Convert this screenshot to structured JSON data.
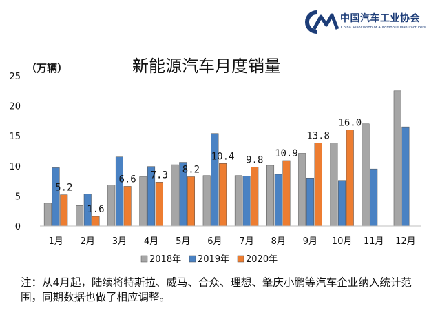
{
  "logo": {
    "name": "中国汽车工业协会",
    "subtitle": "China Association of Automobile Manufacturers",
    "mark_text": "CM"
  },
  "chart_data": {
    "type": "bar",
    "title": "新能源汽车月度销量",
    "unit_label": "（万辆）",
    "categories": [
      "1月",
      "2月",
      "3月",
      "4月",
      "5月",
      "6月",
      "7月",
      "8月",
      "9月",
      "10月",
      "11月",
      "12月"
    ],
    "series": [
      {
        "name": "2018年",
        "color": "#a6a6a6",
        "values": [
          3.8,
          3.4,
          6.8,
          8.2,
          10.2,
          8.4,
          8.4,
          10.1,
          12.1,
          13.8,
          17.0,
          22.5
        ]
      },
      {
        "name": "2019年",
        "color": "#4a82c3",
        "values": [
          9.7,
          5.3,
          11.5,
          9.9,
          10.6,
          15.4,
          8.3,
          8.6,
          8.0,
          7.6,
          9.5,
          16.5
        ]
      },
      {
        "name": "2020年",
        "color": "#ed7d31",
        "values": [
          5.2,
          1.6,
          6.6,
          7.3,
          8.2,
          10.4,
          9.8,
          10.9,
          13.8,
          16.0,
          null,
          null
        ]
      }
    ],
    "data_labels": [
      "5.2",
      "1.6",
      "6.6",
      "7.3",
      "8.2",
      "10.4",
      "9.8",
      "10.9",
      "13.8",
      "16.0"
    ],
    "ylim": [
      0,
      25
    ],
    "yticks": [
      0,
      5,
      10,
      15,
      20,
      25
    ],
    "grid": false,
    "legend_position": "bottom"
  },
  "note": "注：从4月起，陆续将特斯拉、威马、合众、理想、肇庆小鹏等汽车企业纳入统计范围，同期数据也做了相应调整。"
}
